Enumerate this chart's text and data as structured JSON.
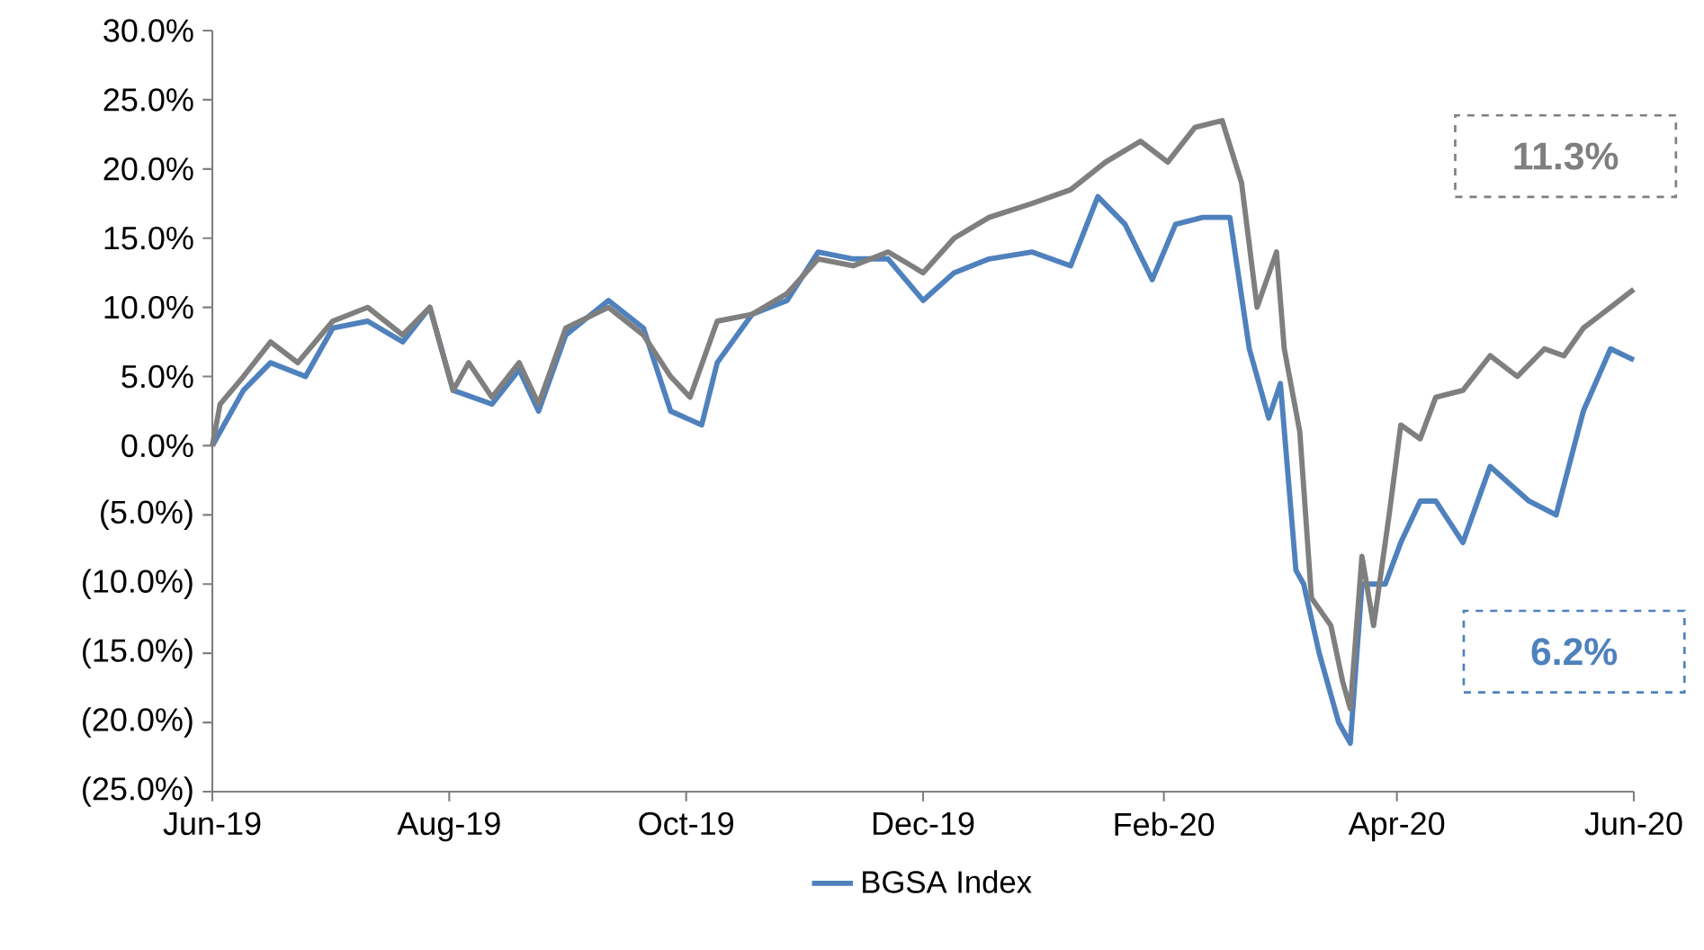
{
  "chart_data": {
    "type": "line",
    "legend": "bottom",
    "line_style": "solid",
    "xlim": [
      "2019-06-01",
      "2020-06-01"
    ],
    "xticks": [
      {
        "value": "2019-06-01",
        "label": "Jun-19"
      },
      {
        "value": "2019-08-01",
        "label": "Aug-19"
      },
      {
        "value": "2019-10-01",
        "label": "Oct-19"
      },
      {
        "value": "2019-12-01",
        "label": "Dec-19"
      },
      {
        "value": "2020-02-01",
        "label": "Feb-20"
      },
      {
        "value": "2020-04-01",
        "label": "Apr-20"
      },
      {
        "value": "2020-06-01",
        "label": "Jun-20"
      }
    ],
    "ylim": [
      -25,
      30
    ],
    "yticks": [
      {
        "value": -25,
        "label": "(25.0%)"
      },
      {
        "value": -20,
        "label": "(20.0%)"
      },
      {
        "value": -15,
        "label": "(15.0%)"
      },
      {
        "value": -10,
        "label": "(10.0%)"
      },
      {
        "value": -5,
        "label": "(5.0%)"
      },
      {
        "value": 0,
        "label": "0.0%"
      },
      {
        "value": 5,
        "label": "5.0%"
      },
      {
        "value": 10,
        "label": "10.0%"
      },
      {
        "value": 15,
        "label": "15.0%"
      },
      {
        "value": 20,
        "label": "20.0%"
      },
      {
        "value": 25,
        "label": "25.0%"
      },
      {
        "value": 30,
        "label": "30.0%"
      }
    ],
    "series": [
      {
        "name": "BGSA Index",
        "color": "#4f81bd",
        "x": [
          "2019-06-01",
          "2019-06-09",
          "2019-06-16",
          "2019-06-25",
          "2019-07-02",
          "2019-07-11",
          "2019-07-20",
          "2019-07-27",
          "2019-08-02",
          "2019-08-12",
          "2019-08-19",
          "2019-08-24",
          "2019-08-31",
          "2019-09-11",
          "2019-09-20",
          "2019-09-27",
          "2019-10-05",
          "2019-10-09",
          "2019-10-18",
          "2019-10-27",
          "2019-11-04",
          "2019-11-13",
          "2019-11-22",
          "2019-12-01",
          "2019-12-09",
          "2019-12-18",
          "2019-12-29",
          "2020-01-08",
          "2020-01-15",
          "2020-01-22",
          "2020-01-29",
          "2020-02-04",
          "2020-02-11",
          "2020-02-18",
          "2020-02-23",
          "2020-02-28",
          "2020-03-02",
          "2020-03-06",
          "2020-03-08",
          "2020-03-12",
          "2020-03-17",
          "2020-03-20",
          "2020-03-23",
          "2020-03-29",
          "2020-04-02",
          "2020-04-07",
          "2020-04-11",
          "2020-04-18",
          "2020-04-25",
          "2020-05-05",
          "2020-05-12",
          "2020-05-19",
          "2020-05-26",
          "2020-06-01"
        ],
        "values": [
          0,
          4,
          6,
          5,
          8.5,
          9,
          7.5,
          10,
          4,
          3,
          5.5,
          2.5,
          8,
          10.5,
          8.5,
          2.5,
          1.5,
          6,
          9.5,
          10.5,
          14,
          13.5,
          13.5,
          10.5,
          12.5,
          13.5,
          14,
          13,
          18,
          16,
          12,
          16,
          16.5,
          16.5,
          7,
          2,
          4.5,
          -9,
          -10,
          -15,
          -20,
          -21.5,
          -10,
          -10,
          -7,
          -4,
          -4,
          -7,
          -1.5,
          -4,
          -5,
          2.5,
          7,
          6.2
        ]
      },
      {
        "color": "#7f7f7f",
        "x": [
          "2019-06-01",
          "2019-06-03",
          "2019-06-09",
          "2019-06-16",
          "2019-06-23",
          "2019-07-02",
          "2019-07-11",
          "2019-07-20",
          "2019-07-27",
          "2019-08-02",
          "2019-08-06",
          "2019-08-12",
          "2019-08-19",
          "2019-08-24",
          "2019-08-31",
          "2019-09-11",
          "2019-09-20",
          "2019-09-27",
          "2019-10-02",
          "2019-10-09",
          "2019-10-18",
          "2019-10-27",
          "2019-11-04",
          "2019-11-13",
          "2019-11-22",
          "2019-12-01",
          "2019-12-09",
          "2019-12-18",
          "2019-12-29",
          "2020-01-08",
          "2020-01-17",
          "2020-01-26",
          "2020-02-02",
          "2020-02-09",
          "2020-02-16",
          "2020-02-21",
          "2020-02-25",
          "2020-03-01",
          "2020-03-03",
          "2020-03-07",
          "2020-03-10",
          "2020-03-15",
          "2020-03-18",
          "2020-03-20",
          "2020-03-23",
          "2020-03-26",
          "2020-03-30",
          "2020-04-02",
          "2020-04-07",
          "2020-04-11",
          "2020-04-18",
          "2020-04-25",
          "2020-05-02",
          "2020-05-09",
          "2020-05-14",
          "2020-05-19",
          "2020-05-26",
          "2020-06-01"
        ],
        "values": [
          0,
          3,
          5,
          7.5,
          6,
          9,
          10,
          8,
          10,
          4,
          6,
          3.5,
          6,
          3,
          8.5,
          10,
          8,
          5,
          3.5,
          9,
          9.5,
          11,
          13.5,
          13,
          14,
          12.5,
          15,
          16.5,
          17.5,
          18.5,
          20.5,
          22,
          20.5,
          23,
          23.5,
          19,
          10,
          14,
          7,
          1,
          -11,
          -13,
          -17,
          -19,
          -8,
          -13,
          -5,
          1.5,
          0.5,
          3.5,
          4,
          6.5,
          5,
          7,
          6.5,
          8.5,
          10,
          11.3
        ]
      }
    ],
    "annotations": [
      "6.2%",
      "11.3%"
    ]
  }
}
